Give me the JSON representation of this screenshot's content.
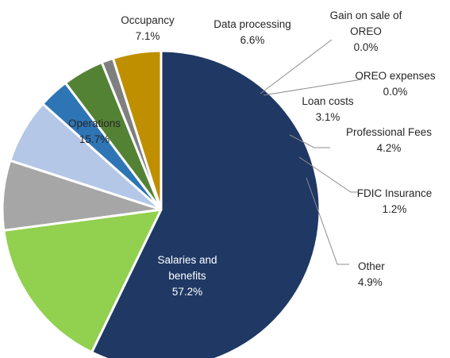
{
  "chart_data": {
    "type": "pie",
    "title": "",
    "start_angle_deg": 90,
    "direction": "clockwise",
    "slices": [
      {
        "name": "Salaries and benefits",
        "value": 57.2,
        "label": "57.2%",
        "color": "#1F3864"
      },
      {
        "name": "Operations",
        "value": 15.7,
        "label": "15.7%",
        "color": "#92D050"
      },
      {
        "name": "Occupancy",
        "value": 7.1,
        "label": "7.1%",
        "color": "#A6A6A6"
      },
      {
        "name": "Data processing",
        "value": 6.6,
        "label": "6.6%",
        "color": "#B4C7E7"
      },
      {
        "name": "Gain on sale of OREO",
        "value": 0.0,
        "label": "0.0%",
        "color": "#000000"
      },
      {
        "name": "OREO expenses",
        "value": 0.0,
        "label": "0.0%",
        "color": "#7F7F7F"
      },
      {
        "name": "Loan costs",
        "value": 3.1,
        "label": "3.1%",
        "color": "#2E75B6"
      },
      {
        "name": "Professional Fees",
        "value": 4.2,
        "label": "4.2%",
        "color": "#548235"
      },
      {
        "name": "FDIC Insurance",
        "value": 1.2,
        "label": "1.2%",
        "color": "#7F7F7F"
      },
      {
        "name": "Other",
        "value": 4.9,
        "label": "4.9%",
        "color": "#BF8F00"
      }
    ]
  }
}
